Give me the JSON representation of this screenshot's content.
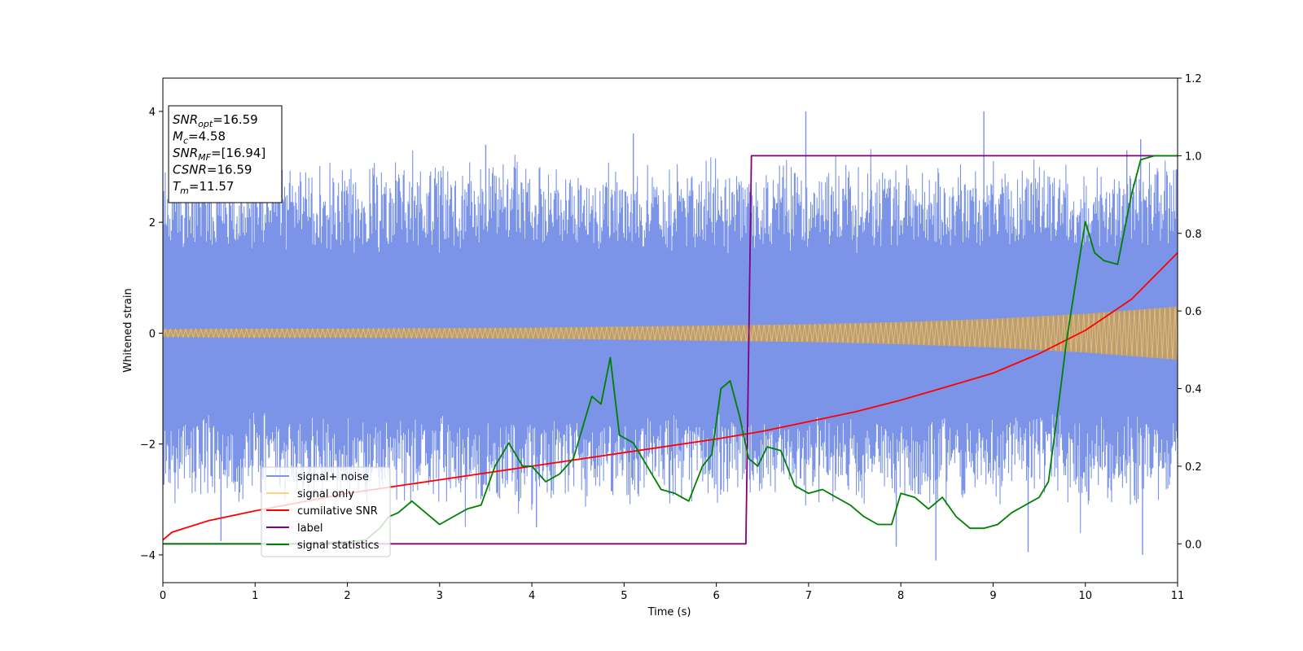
{
  "chart_data": {
    "type": "line",
    "xlabel": "Time (s)",
    "ylabel": "Whitened strain",
    "xlim": [
      0,
      11
    ],
    "ylim": [
      -4.5,
      4.6
    ],
    "y2lim": [
      -0.1,
      1.2
    ],
    "xticks": [
      "0",
      "1",
      "2",
      "3",
      "4",
      "5",
      "6",
      "7",
      "8",
      "9",
      "10",
      "11"
    ],
    "yticks": [
      "−4",
      "−2",
      "0",
      "2",
      "4"
    ],
    "y2ticks": [
      "0.0",
      "0.2",
      "0.4",
      "0.6",
      "0.8",
      "1.0",
      "1.2"
    ],
    "grid": false,
    "legend_position": "lower-left",
    "info_box": {
      "position": "upper-left",
      "lines": [
        {
          "var": "SNR",
          "sub": "opt",
          "value": "=16.59"
        },
        {
          "var": "M",
          "sub": "c",
          "value": "=4.58"
        },
        {
          "var": "SNR",
          "sub": "MF",
          "value": "=[16.94]"
        },
        {
          "var": "CSNR",
          "sub": "",
          "value": "=16.59"
        },
        {
          "var": "T",
          "sub": "m",
          "value": "=11.57"
        }
      ]
    },
    "series": [
      {
        "name": "signal+ noise",
        "color": "#7b94e8",
        "axis": "left",
        "kind": "noise_band",
        "x": [
          0,
          11
        ],
        "envelope": [
          2.6,
          3.2
        ],
        "peaks": [
          [
            1.05,
            3.5
          ],
          [
            3.5,
            3.4
          ],
          [
            5.1,
            3.6
          ],
          [
            6.97,
            4.0
          ],
          [
            8.9,
            4.0
          ],
          [
            10.6,
            3.5
          ],
          [
            10.45,
            3.3
          ]
        ],
        "troughs": [
          [
            0.63,
            -3.75
          ],
          [
            4.05,
            -3.5
          ],
          [
            8.38,
            -4.1
          ],
          [
            9.38,
            -3.95
          ],
          [
            10.62,
            -4.0
          ],
          [
            7.95,
            -3.85
          ]
        ]
      },
      {
        "name": "signal only",
        "color": "#fdd37a",
        "axis": "left",
        "kind": "chirp_envelope",
        "x": [
          0,
          1,
          2,
          3,
          4,
          5,
          6,
          7,
          8,
          9,
          10,
          11
        ],
        "values": [
          0.07,
          0.08,
          0.08,
          0.09,
          0.1,
          0.12,
          0.14,
          0.16,
          0.2,
          0.26,
          0.35,
          0.48
        ]
      },
      {
        "name": "cumilative SNR",
        "color": "#ff0000",
        "axis": "right",
        "x": [
          0,
          0.1,
          0.5,
          1,
          2,
          3,
          4,
          5,
          6,
          6.5,
          7,
          7.5,
          8,
          8.5,
          9,
          9.5,
          10,
          10.5,
          11
        ],
        "values": [
          0.01,
          0.03,
          0.06,
          0.085,
          0.13,
          0.165,
          0.2,
          0.235,
          0.27,
          0.29,
          0.315,
          0.34,
          0.37,
          0.405,
          0.44,
          0.49,
          0.55,
          0.63,
          0.75
        ]
      },
      {
        "name": "label",
        "color": "#800080",
        "axis": "right",
        "x": [
          0,
          6.32,
          6.38,
          11
        ],
        "values": [
          0,
          0,
          1,
          1
        ]
      },
      {
        "name": "signal statistics",
        "color": "#008000",
        "axis": "right",
        "x": [
          0,
          0.5,
          1,
          1.5,
          2,
          2.2,
          2.35,
          2.45,
          2.55,
          2.7,
          2.85,
          3.0,
          3.15,
          3.3,
          3.45,
          3.6,
          3.75,
          3.9,
          4.0,
          4.15,
          4.3,
          4.45,
          4.55,
          4.65,
          4.75,
          4.85,
          4.95,
          5.1,
          5.25,
          5.4,
          5.55,
          5.7,
          5.85,
          5.95,
          6.05,
          6.15,
          6.25,
          6.35,
          6.45,
          6.55,
          6.7,
          6.85,
          7.0,
          7.15,
          7.3,
          7.45,
          7.6,
          7.75,
          7.9,
          8.0,
          8.15,
          8.3,
          8.45,
          8.6,
          8.75,
          8.9,
          9.05,
          9.2,
          9.35,
          9.5,
          9.6,
          9.7,
          9.8,
          9.9,
          10.0,
          10.1,
          10.2,
          10.35,
          10.5,
          10.6,
          10.75,
          11.0
        ],
        "values": [
          0,
          0.0,
          0.0,
          0.0,
          0.005,
          0.01,
          0.04,
          0.07,
          0.08,
          0.11,
          0.08,
          0.05,
          0.07,
          0.09,
          0.1,
          0.2,
          0.26,
          0.2,
          0.2,
          0.16,
          0.18,
          0.22,
          0.3,
          0.38,
          0.36,
          0.48,
          0.28,
          0.26,
          0.2,
          0.14,
          0.13,
          0.11,
          0.2,
          0.23,
          0.4,
          0.42,
          0.33,
          0.22,
          0.2,
          0.25,
          0.24,
          0.15,
          0.13,
          0.14,
          0.12,
          0.1,
          0.07,
          0.05,
          0.05,
          0.13,
          0.12,
          0.09,
          0.12,
          0.07,
          0.04,
          0.04,
          0.05,
          0.08,
          0.1,
          0.12,
          0.16,
          0.34,
          0.53,
          0.68,
          0.83,
          0.75,
          0.73,
          0.72,
          0.9,
          0.99,
          1.0,
          1.0
        ]
      }
    ]
  }
}
